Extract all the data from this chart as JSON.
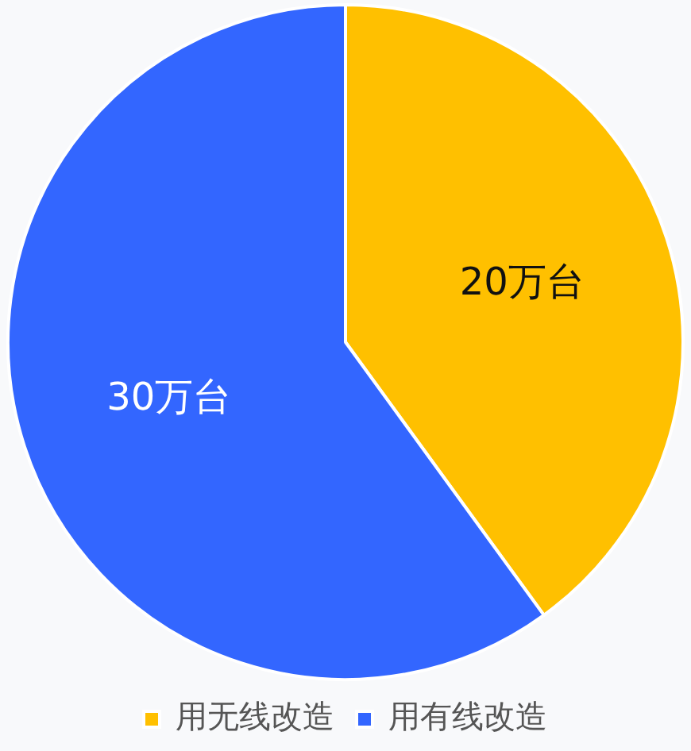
{
  "chart_data": {
    "type": "pie",
    "categories": [
      "用无线改造",
      "用有线改造"
    ],
    "values": [
      20,
      30
    ],
    "colors": [
      "#ffc000",
      "#3366ff"
    ],
    "value_labels": [
      "20万台",
      "30万台"
    ],
    "legend": "bottom"
  }
}
